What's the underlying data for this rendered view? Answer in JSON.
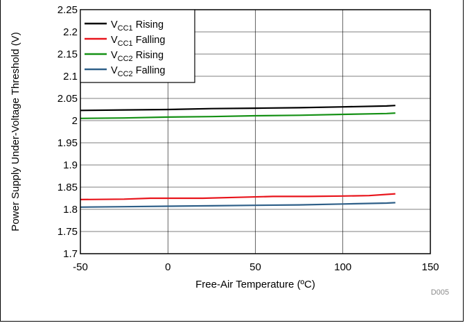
{
  "chart_data": {
    "type": "line",
    "xlabel": "Free-Air Temperature (ºC)",
    "ylabel": "Power Supply Under-Voltage Threshold (V)",
    "xlim": [
      -50,
      150
    ],
    "ylim": [
      1.7,
      2.25
    ],
    "x_ticks": [
      "-50",
      "0",
      "50",
      "100",
      "150"
    ],
    "y_ticks": [
      "1.7",
      "1.75",
      "1.8",
      "1.85",
      "1.9",
      "1.95",
      "2",
      "2.05",
      "2.1",
      "2.15",
      "2.2",
      "2.25"
    ],
    "x_tick_values": [
      -50,
      0,
      50,
      100,
      150
    ],
    "y_tick_values": [
      1.7,
      1.75,
      1.8,
      1.85,
      1.9,
      1.95,
      2.0,
      2.05,
      2.1,
      2.15,
      2.2,
      2.25
    ],
    "grid": true,
    "legend_position": "top-left",
    "series": [
      {
        "name": "VCC1 Rising",
        "label_main": "V",
        "label_sub": "CC1",
        "label_rest": " Rising",
        "color": "#000000",
        "x": [
          -50,
          -25,
          0,
          25,
          50,
          75,
          100,
          125,
          130
        ],
        "y": [
          2.023,
          2.024,
          2.025,
          2.027,
          2.028,
          2.029,
          2.031,
          2.033,
          2.034
        ]
      },
      {
        "name": "VCC1 Falling",
        "label_main": "V",
        "label_sub": "CC1",
        "label_rest": " Falling",
        "color": "#e8141b",
        "x": [
          -50,
          -25,
          -10,
          20,
          40,
          60,
          80,
          100,
          115,
          130
        ],
        "y": [
          1.822,
          1.823,
          1.825,
          1.825,
          1.827,
          1.829,
          1.829,
          1.83,
          1.831,
          1.835
        ]
      },
      {
        "name": "VCC2 Rising",
        "label_main": "V",
        "label_sub": "CC2",
        "label_rest": " Rising",
        "color": "#149014",
        "x": [
          -50,
          -25,
          0,
          25,
          50,
          75,
          100,
          125,
          130
        ],
        "y": [
          2.005,
          2.006,
          2.008,
          2.009,
          2.011,
          2.012,
          2.014,
          2.016,
          2.017
        ]
      },
      {
        "name": "VCC2 Falling",
        "label_main": "V",
        "label_sub": "CC2",
        "label_rest": " Falling",
        "color": "#2e5f88",
        "x": [
          -50,
          -25,
          0,
          25,
          50,
          75,
          100,
          125,
          130
        ],
        "y": [
          1.805,
          1.806,
          1.807,
          1.808,
          1.809,
          1.81,
          1.812,
          1.814,
          1.815
        ]
      }
    ],
    "figure_code": "D005"
  }
}
